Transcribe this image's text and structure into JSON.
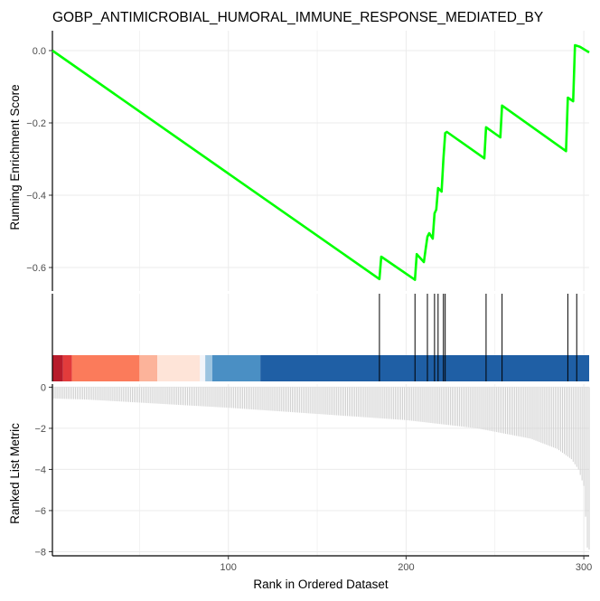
{
  "chart_data": {
    "type": "gsea",
    "title": "GOBP_ANTIMICROBIAL_HUMORAL_IMMUNE_RESPONSE_MEDIATED_BY",
    "xlabel": "Rank in Ordered Dataset",
    "xlim": [
      1,
      303
    ],
    "x_ticks": [
      100,
      200,
      300
    ],
    "grid": true,
    "colors": {
      "enrichment_line": "#00ff00",
      "hit_line": "#000000",
      "metric_bars": "#cfcfcf",
      "grid": "#ebebeb"
    },
    "panels": [
      {
        "name": "running-enrichment",
        "ylabel": "Running Enrichment Score",
        "ylim": [
          -0.665,
          0.055
        ],
        "y_ticks": [
          0.0,
          -0.2,
          -0.4,
          -0.6
        ],
        "y_tick_labels": [
          "0.0",
          "−0.2",
          "−0.4",
          "−0.6"
        ],
        "series": [
          {
            "x": [
              1,
              185,
              186,
              205,
              206,
              210,
              211,
              212,
              213,
              215,
              216,
              217,
              218,
              220,
              221,
              222,
              223,
              244,
              245,
              253,
              254,
              290,
              291,
              294,
              295,
              297,
              298,
              303
            ],
            "y": [
              0.0,
              -0.632,
              -0.57,
              -0.634,
              -0.563,
              -0.585,
              -0.55,
              -0.515,
              -0.505,
              -0.52,
              -0.45,
              -0.44,
              -0.38,
              -0.39,
              -0.3,
              -0.228,
              -0.225,
              -0.298,
              -0.212,
              -0.24,
              -0.152,
              -0.278,
              -0.13,
              -0.14,
              0.015,
              0.012,
              0.01,
              -0.005
            ]
          }
        ]
      },
      {
        "name": "hit-positions",
        "hits": [
          185,
          205,
          212,
          216,
          218,
          221,
          222,
          245,
          254,
          291,
          296
        ],
        "heat_bands": [
          {
            "from": 1,
            "to": 7,
            "color": "#b71c2c"
          },
          {
            "from": 7,
            "to": 12,
            "color": "#e23b3b"
          },
          {
            "from": 12,
            "to": 50,
            "color": "#fb7b5b"
          },
          {
            "from": 50,
            "to": 60,
            "color": "#fcb39a"
          },
          {
            "from": 60,
            "to": 84,
            "color": "#fee4d8"
          },
          {
            "from": 84,
            "to": 87,
            "color": "#f2f5fa"
          },
          {
            "from": 87,
            "to": 91,
            "color": "#9cc4e0"
          },
          {
            "from": 91,
            "to": 118,
            "color": "#4a8fc4"
          },
          {
            "from": 118,
            "to": 303,
            "color": "#1f5fa5"
          }
        ]
      },
      {
        "name": "ranked-list-metric",
        "ylabel": "Ranked List Metric",
        "ylim": [
          -8.2,
          0.15
        ],
        "y_ticks": [
          0,
          -2,
          -4,
          -6,
          -8
        ],
        "y_tick_labels": [
          "0",
          "−2",
          "−4",
          "−6",
          "−8"
        ],
        "metric_profile": {
          "ranks": [
            1,
            20,
            50,
            100,
            150,
            200,
            240,
            270,
            285,
            293,
            297,
            300,
            302,
            303
          ],
          "values": [
            -0.55,
            -0.6,
            -0.75,
            -1.0,
            -1.3,
            -1.6,
            -2.0,
            -2.5,
            -3.0,
            -3.5,
            -4.0,
            -4.8,
            -7.8,
            -7.9
          ]
        }
      }
    ]
  }
}
